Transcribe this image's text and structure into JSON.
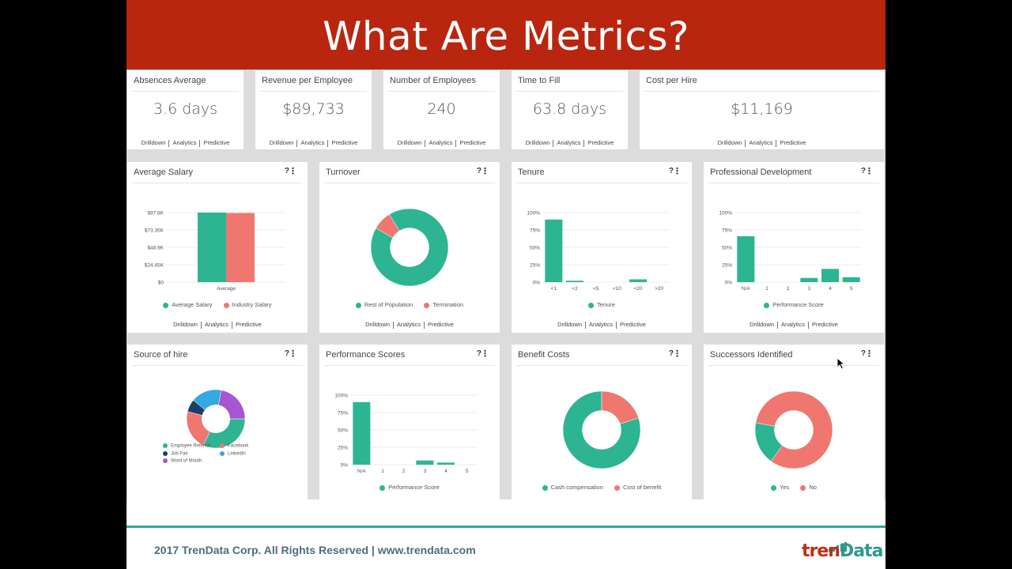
{
  "slide_title": "What Are Metrics?",
  "colors": {
    "title_bg": "#b9250e",
    "teal": "#2db492",
    "salmon": "#f07670",
    "navy": "#1b3f68",
    "sky": "#35a9e1",
    "purple": "#a855d1",
    "footer_line": "#2ba89a"
  },
  "link_labels": [
    "Drilldown",
    "Analytics",
    "Predictive"
  ],
  "kpis": [
    {
      "title": "Absences Average",
      "value": "3.6 days"
    },
    {
      "title": "Revenue per Employee",
      "value": "$89,733"
    },
    {
      "title": "Number of Employees",
      "value": "240"
    },
    {
      "title": "Time to Fill",
      "value": "63.8 days"
    },
    {
      "title": "Cost per Hire",
      "value": "$11,169"
    }
  ],
  "charts": {
    "average_salary": {
      "title": "Average Salary",
      "legend": [
        "Average Salary",
        "Industry Salary"
      ]
    },
    "turnover": {
      "title": "Turnover",
      "legend": [
        "Rest of Population",
        "Termination"
      ]
    },
    "tenure": {
      "title": "Tenure",
      "legend": [
        "Tenure"
      ]
    },
    "professional_development": {
      "title": "Professional Development",
      "legend": [
        "Performance Score"
      ]
    },
    "source_of_hire": {
      "title": "Source of hire",
      "legend": [
        "Employee Referral",
        "Facebook",
        "Job Fair",
        "LinkedIn",
        "Word of Mouth"
      ]
    },
    "performance_scores": {
      "title": "Performance Scores",
      "legend": [
        "Performance Score"
      ]
    },
    "benefit_costs": {
      "title": "Benefit Costs",
      "legend": [
        "Cash compensation",
        "Cost of benefit"
      ]
    },
    "successors_identified": {
      "title": "Successors Identified",
      "legend": [
        "Yes",
        "No"
      ]
    }
  },
  "chart_data": [
    {
      "type": "bar",
      "id": "average_salary",
      "title": "Average Salary",
      "categories": [
        "Average"
      ],
      "series": [
        {
          "name": "Average Salary",
          "values": [
            97.8
          ]
        },
        {
          "name": "Industry Salary",
          "values": [
            97.2
          ]
        }
      ],
      "ylabel": "",
      "yticks": [
        "$0",
        "$24.45K",
        "$48.9K",
        "$73.35K",
        "$97.8K"
      ],
      "ylim": [
        0,
        97.8
      ]
    },
    {
      "type": "pie",
      "id": "turnover",
      "title": "Turnover",
      "labels": [
        "Rest of Population",
        "Termination"
      ],
      "values": [
        92,
        8
      ]
    },
    {
      "type": "bar",
      "id": "tenure",
      "title": "Tenure",
      "categories": [
        "<1",
        "<2",
        "<5",
        "<10",
        "<20",
        ">20"
      ],
      "values": [
        90,
        2,
        0,
        0,
        4,
        0
      ],
      "yticks": [
        "0%",
        "25%",
        "50%",
        "75%",
        "100%"
      ],
      "ylim": [
        0,
        100
      ]
    },
    {
      "type": "bar",
      "id": "professional_development",
      "title": "Professional Development",
      "categories": [
        "N/A",
        "1",
        "2",
        "3",
        "4",
        "5"
      ],
      "values": [
        66,
        0,
        0,
        6,
        19,
        7
      ],
      "yticks": [
        "0%",
        "25%",
        "50%",
        "75%",
        "100%"
      ],
      "ylim": [
        0,
        100
      ]
    },
    {
      "type": "pie",
      "id": "source_of_hire",
      "title": "Source of hire",
      "labels": [
        "Employee Referral",
        "Facebook",
        "Job Fair",
        "LinkedIn",
        "Word of Mouth"
      ],
      "values": [
        32,
        22,
        7,
        17,
        22
      ]
    },
    {
      "type": "bar",
      "id": "performance_scores",
      "title": "Performance Scores",
      "categories": [
        "N/A",
        "1",
        "2",
        "3",
        "4",
        "5"
      ],
      "values": [
        90,
        0,
        0,
        6,
        3,
        0
      ],
      "yticks": [
        "0%",
        "25%",
        "50%",
        "75%",
        "100%"
      ],
      "ylim": [
        0,
        100
      ]
    },
    {
      "type": "pie",
      "id": "benefit_costs",
      "title": "Benefit Costs",
      "labels": [
        "Cash compensation",
        "Cost of benefit"
      ],
      "values": [
        80,
        20
      ]
    },
    {
      "type": "pie",
      "id": "successors_identified",
      "title": "Successors Identified",
      "labels": [
        "Yes",
        "No"
      ],
      "values": [
        18,
        82
      ]
    }
  ],
  "footer": {
    "text": "2017 TrenData Corp.  All Rights Reserved | www.trendata.com",
    "logo_part1": "tren",
    "logo_part2": "Data"
  }
}
